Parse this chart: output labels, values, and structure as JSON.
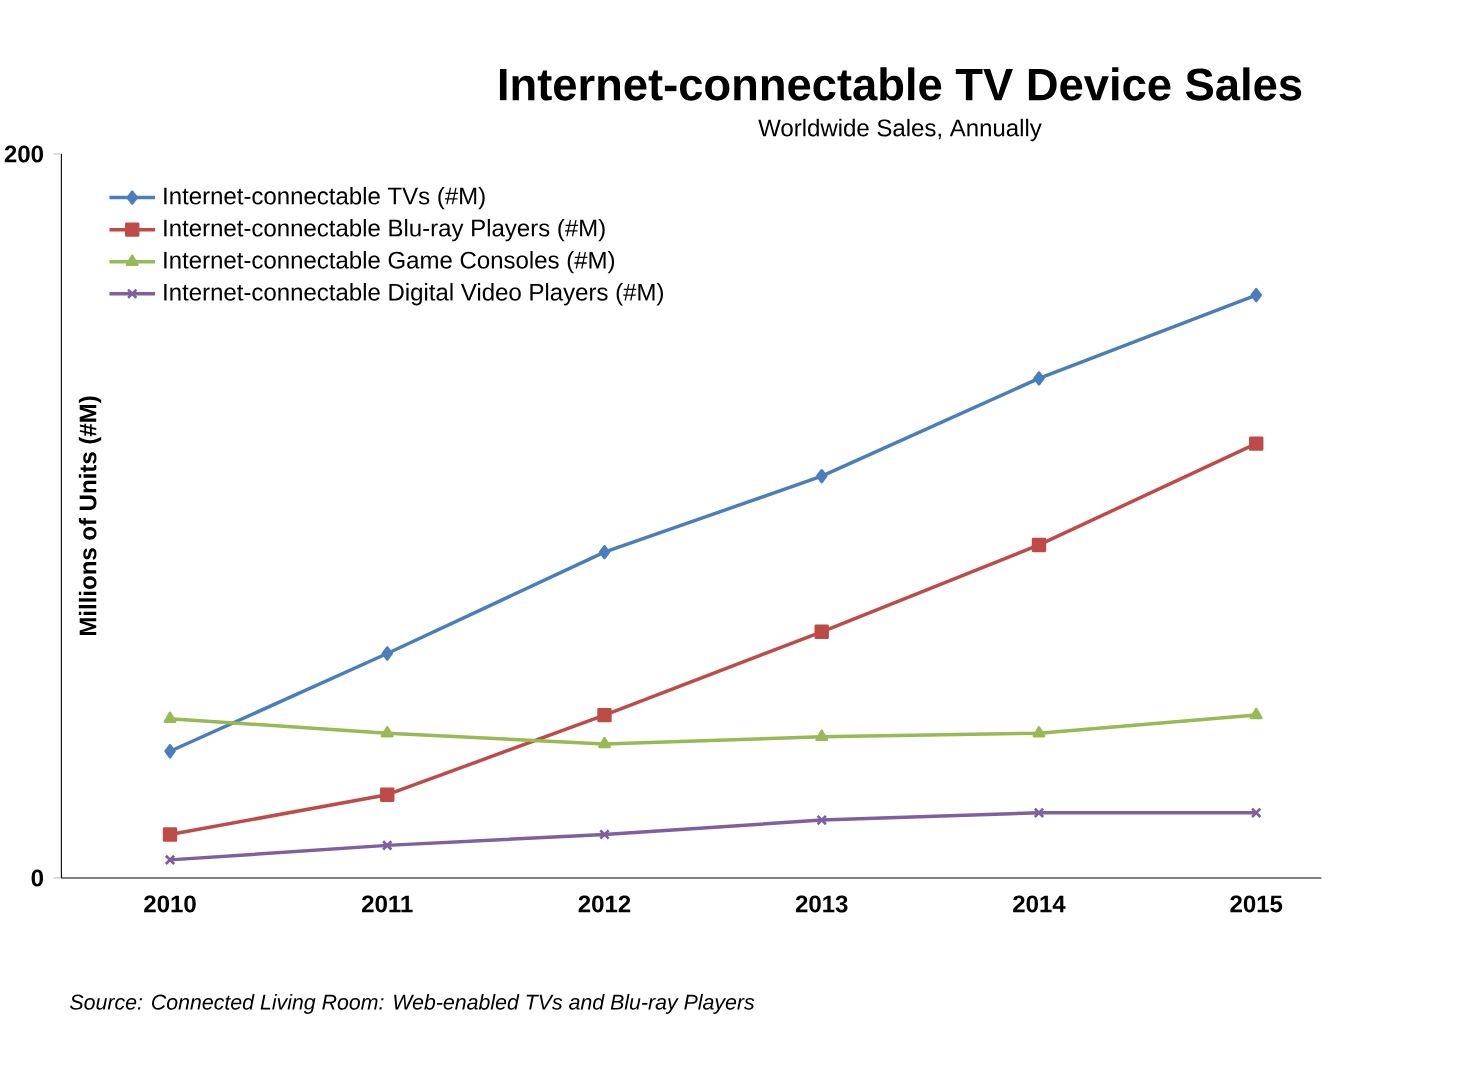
{
  "chart_data": {
    "type": "line",
    "title": "Internet-connectable TV Device Sales",
    "subtitle": "Worldwide Sales, Annually",
    "ylabel": "Millions of Units (#M)",
    "categories": [
      "2010",
      "2011",
      "2012",
      "2013",
      "2014",
      "2015"
    ],
    "ylim": [
      0,
      200
    ],
    "yticks": [
      0,
      200
    ],
    "legend": "top left",
    "series": [
      {
        "name": "Internet-connectable TVs (#M)",
        "color": "#4a7ebb",
        "marker": "diamond",
        "values": [
          35,
          62,
          90,
          111,
          138,
          161
        ]
      },
      {
        "name": "Internet-connectable Blu-ray Players (#M)",
        "color": "#be4b48",
        "marker": "square",
        "values": [
          12,
          23,
          45,
          68,
          92,
          120
        ]
      },
      {
        "name": "Internet-connectable Game Consoles (#M)",
        "color": "#98b954",
        "marker": "triangle",
        "values": [
          44,
          40,
          37,
          39,
          40,
          45
        ]
      },
      {
        "name": "Internet-connectable Digital Video Players (#M)",
        "color": "#7d60a0",
        "marker": "cross",
        "values": [
          5,
          9,
          12,
          16,
          18,
          18
        ]
      }
    ],
    "annotations": [
      "Source: Connected Living Room: Web-enabled TVs and Blu-ray Players"
    ]
  }
}
